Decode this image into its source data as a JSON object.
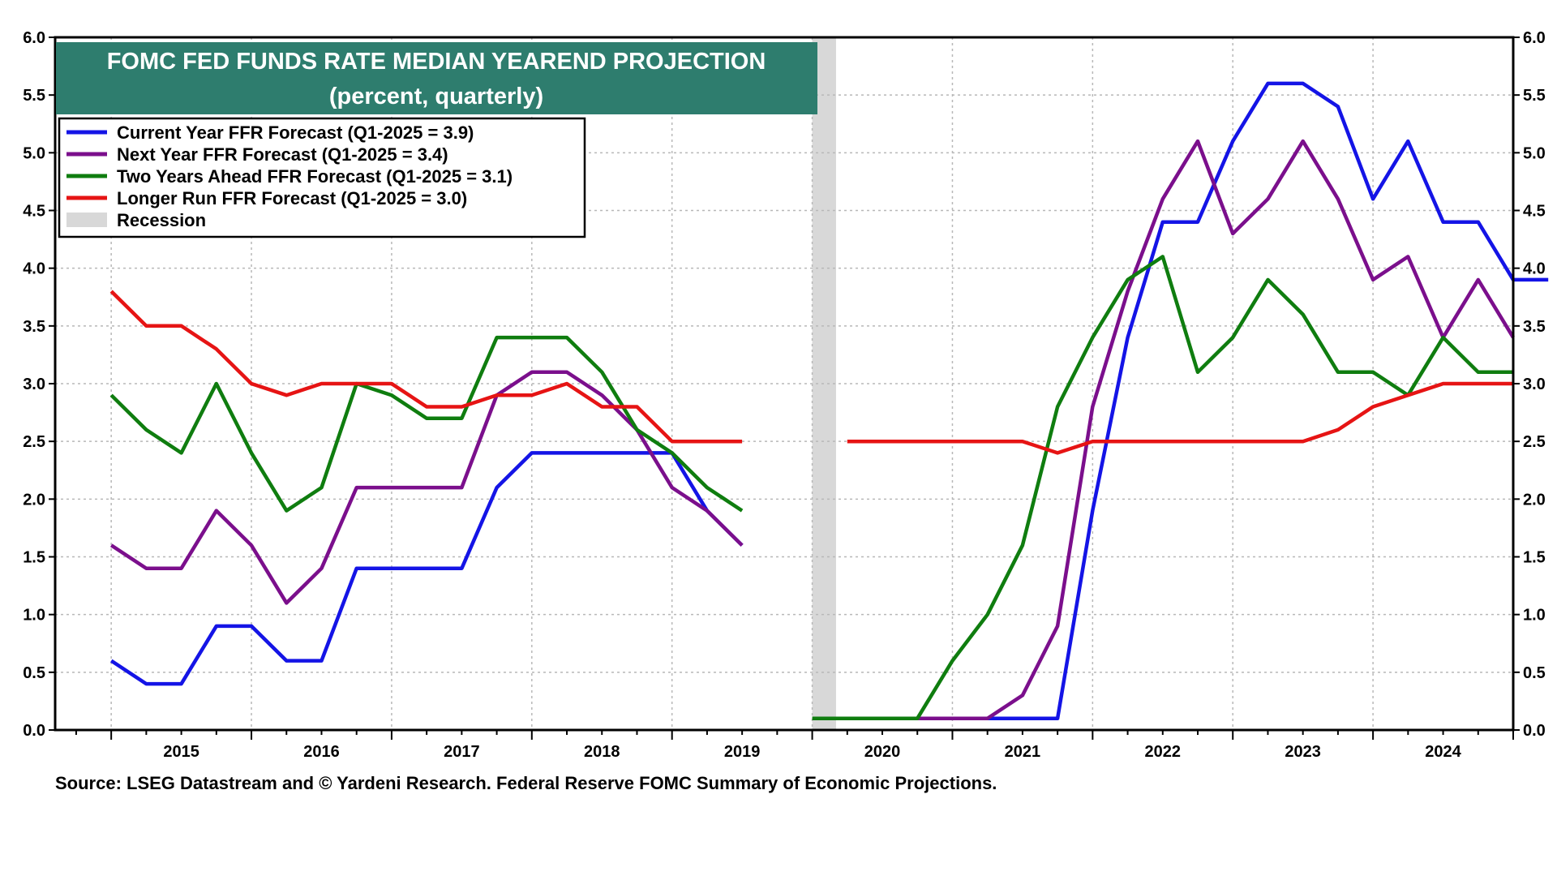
{
  "chart_data": {
    "type": "line",
    "title": "FOMC FED FUNDS RATE MEDIAN YEAREND PROJECTION",
    "subtitle": "(percent, quarterly)",
    "source": "Source: LSEG Datastream and © Yardeni Research. Federal Reserve FOMC Summary of Economic Projections.",
    "ylim": [
      0.0,
      6.0
    ],
    "y_ticks": [
      "0.0",
      "0.5",
      "1.0",
      "1.5",
      "2.0",
      "2.5",
      "3.0",
      "3.5",
      "4.0",
      "4.5",
      "5.0",
      "5.5",
      "6.0"
    ],
    "x_range": [
      2014.6,
      2025.0
    ],
    "x_tick_labels": [
      "2015",
      "2016",
      "2017",
      "2018",
      "2019",
      "2020",
      "2021",
      "2022",
      "2023",
      "2024"
    ],
    "grid": true,
    "legend_position": "top-left",
    "recession": {
      "label": "Recession",
      "start": 2020.0,
      "end": 2020.17,
      "color": "#d8d8d8"
    },
    "series": [
      {
        "name": "Current Year FFR Forecast (Q1-2025 = 3.9)",
        "color": "#1414e6",
        "x": [
          2015.0,
          2015.25,
          2015.5,
          2015.75,
          2016.0,
          2016.25,
          2016.5,
          2016.75,
          2017.0,
          2017.25,
          2017.5,
          2017.75,
          2018.0,
          2018.25,
          2018.5,
          2018.75,
          2019.0,
          2019.25,
          2019.5,
          null,
          2020.75,
          2021.0,
          2021.25,
          2021.5,
          2021.75,
          2022.0,
          2022.25,
          2022.5,
          2022.75,
          2023.0,
          2023.25,
          2023.5,
          2023.75,
          2024.0,
          2024.25,
          2024.5,
          2024.75,
          2025.0,
          2025.25
        ],
        "y": [
          0.6,
          0.4,
          0.4,
          0.9,
          0.9,
          0.6,
          0.6,
          1.4,
          1.4,
          1.4,
          1.4,
          2.1,
          2.4,
          2.4,
          2.4,
          2.4,
          2.4,
          1.9,
          1.6,
          null,
          0.1,
          0.1,
          0.1,
          0.1,
          0.1,
          1.9,
          3.4,
          4.4,
          4.4,
          5.1,
          5.6,
          5.6,
          5.4,
          4.6,
          5.1,
          4.4,
          4.4,
          3.9,
          3.9
        ]
      },
      {
        "name": "Next Year FFR Forecast (Q1-2025 = 3.4)",
        "color": "#7b0f8c",
        "x": [
          2015.0,
          2015.25,
          2015.5,
          2015.75,
          2016.0,
          2016.25,
          2016.5,
          2016.75,
          2017.0,
          2017.25,
          2017.5,
          2017.75,
          2018.0,
          2018.25,
          2018.5,
          2018.75,
          2019.0,
          2019.25,
          2019.5,
          null,
          2020.75,
          2021.0,
          2021.25,
          2021.5,
          2021.75,
          2022.0,
          2022.25,
          2022.5,
          2022.75,
          2023.0,
          2023.25,
          2023.5,
          2023.75,
          2024.0,
          2024.25,
          2024.5,
          2024.75,
          2025.0
        ],
        "y": [
          1.6,
          1.4,
          1.4,
          1.9,
          1.6,
          1.1,
          1.4,
          2.1,
          2.1,
          2.1,
          2.1,
          2.9,
          3.1,
          3.1,
          2.9,
          2.6,
          2.1,
          1.9,
          1.6,
          null,
          0.1,
          0.1,
          0.1,
          0.3,
          0.9,
          2.8,
          3.8,
          4.6,
          5.1,
          4.3,
          4.6,
          5.1,
          4.6,
          3.9,
          4.1,
          3.4,
          3.9,
          3.4
        ]
      },
      {
        "name": "Two Years Ahead FFR Forecast (Q1-2025 = 3.1)",
        "color": "#0f7d0f",
        "x": [
          2015.0,
          2015.25,
          2015.5,
          2015.75,
          2016.0,
          2016.25,
          2016.5,
          2016.75,
          2017.0,
          2017.25,
          2017.5,
          2017.75,
          2018.0,
          2018.25,
          2018.5,
          2018.75,
          2019.0,
          2019.25,
          2019.5,
          null,
          2020.0,
          2020.25,
          2020.5,
          2020.75,
          2021.0,
          2021.25,
          2021.5,
          2021.75,
          2022.0,
          2022.25,
          2022.5,
          2022.75,
          2023.0,
          2023.25,
          2023.5,
          2023.75,
          2024.0,
          2024.25,
          2024.5,
          2024.75,
          2025.0
        ],
        "y": [
          2.9,
          2.6,
          2.4,
          3.0,
          2.4,
          1.9,
          2.1,
          3.0,
          2.9,
          2.7,
          2.7,
          3.4,
          3.4,
          3.4,
          3.1,
          2.6,
          2.4,
          2.1,
          1.9,
          null,
          0.1,
          0.1,
          0.1,
          0.1,
          0.6,
          1.0,
          1.6,
          2.8,
          3.4,
          3.9,
          4.1,
          3.1,
          3.4,
          3.9,
          3.6,
          3.1,
          3.1,
          2.9,
          3.4,
          3.1,
          3.1
        ]
      },
      {
        "name": "Longer Run FFR Forecast (Q1-2025 = 3.0)",
        "color": "#e61414",
        "x": [
          2015.0,
          2015.25,
          2015.5,
          2015.75,
          2016.0,
          2016.25,
          2016.5,
          2016.75,
          2017.0,
          2017.25,
          2017.5,
          2017.75,
          2018.0,
          2018.25,
          2018.5,
          2018.75,
          2019.0,
          2019.25,
          2019.5,
          null,
          2020.25,
          2020.5,
          2020.75,
          2021.0,
          2021.25,
          2021.5,
          2021.75,
          2022.0,
          2022.25,
          2022.5,
          2022.75,
          2023.0,
          2023.25,
          2023.5,
          2023.75,
          2024.0,
          2024.25,
          2024.5,
          2024.75,
          2025.0
        ],
        "y": [
          3.8,
          3.5,
          3.5,
          3.3,
          3.0,
          2.9,
          3.0,
          3.0,
          3.0,
          2.8,
          2.8,
          2.9,
          2.9,
          3.0,
          2.8,
          2.8,
          2.5,
          2.5,
          2.5,
          null,
          2.5,
          2.5,
          2.5,
          2.5,
          2.5,
          2.5,
          2.4,
          2.5,
          2.5,
          2.5,
          2.5,
          2.5,
          2.5,
          2.5,
          2.6,
          2.8,
          2.9,
          3.0,
          3.0,
          3.0
        ]
      }
    ]
  }
}
